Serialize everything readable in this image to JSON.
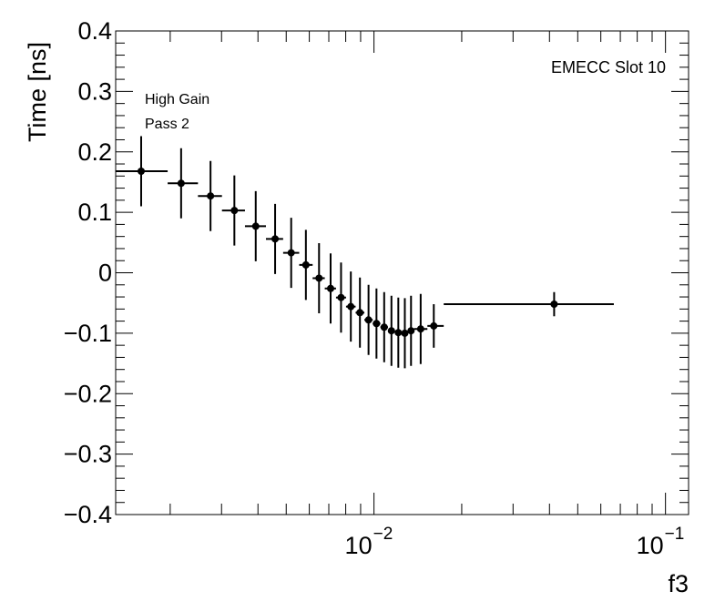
{
  "chart_data": {
    "type": "scatter",
    "title": "",
    "xlabel": "f3",
    "ylabel": "Time [ns]",
    "xscale": "log",
    "xlim": [
      0.0013,
      0.12
    ],
    "ylim": [
      -0.4,
      0.4
    ],
    "y_ticks": [
      {
        "value": 0.4,
        "label": "0.4"
      },
      {
        "value": 0.3,
        "label": "0.3"
      },
      {
        "value": 0.2,
        "label": "0.2"
      },
      {
        "value": 0.1,
        "label": "0.1"
      },
      {
        "value": 0.0,
        "label": "0"
      },
      {
        "value": -0.1,
        "label": "−0.1"
      },
      {
        "value": -0.2,
        "label": "−0.2"
      },
      {
        "value": -0.3,
        "label": "−0.3"
      },
      {
        "value": -0.4,
        "label": "−0.4"
      }
    ],
    "x_ticks": [
      {
        "value": 0.01,
        "base": "10",
        "exp": "−2"
      },
      {
        "value": 0.1,
        "base": "10",
        "exp": "−1"
      }
    ],
    "annotations": {
      "label1": "High Gain",
      "label2": "Pass 2",
      "label3": "EMECC Slot 10"
    },
    "series": [
      {
        "name": "Time",
        "points": [
          {
            "x": 0.00159,
            "xlo": 0.0013,
            "xhi": 0.00196,
            "y": 0.168,
            "err": 0.058
          },
          {
            "x": 0.00218,
            "xlo": 0.00196,
            "xhi": 0.00249,
            "y": 0.148,
            "err": 0.058
          },
          {
            "x": 0.00275,
            "xlo": 0.00249,
            "xhi": 0.00301,
            "y": 0.127,
            "err": 0.058
          },
          {
            "x": 0.00332,
            "xlo": 0.00301,
            "xhi": 0.00361,
            "y": 0.103,
            "err": 0.058
          },
          {
            "x": 0.00393,
            "xlo": 0.00361,
            "xhi": 0.00426,
            "y": 0.077,
            "err": 0.058
          },
          {
            "x": 0.00458,
            "xlo": 0.00426,
            "xhi": 0.00488,
            "y": 0.056,
            "err": 0.058
          },
          {
            "x": 0.0052,
            "xlo": 0.00488,
            "xhi": 0.00554,
            "y": 0.033,
            "err": 0.058
          },
          {
            "x": 0.00584,
            "xlo": 0.00554,
            "xhi": 0.00616,
            "y": 0.013,
            "err": 0.058
          },
          {
            "x": 0.00648,
            "xlo": 0.00616,
            "xhi": 0.00678,
            "y": -0.009,
            "err": 0.058
          },
          {
            "x": 0.0071,
            "xlo": 0.00678,
            "xhi": 0.00741,
            "y": -0.026,
            "err": 0.058
          },
          {
            "x": 0.00771,
            "xlo": 0.00741,
            "xhi": 0.00802,
            "y": -0.041,
            "err": 0.058
          },
          {
            "x": 0.00833,
            "xlo": 0.00802,
            "xhi": 0.00865,
            "y": -0.056,
            "err": 0.058
          },
          {
            "x": 0.00895,
            "xlo": 0.00865,
            "xhi": 0.00927,
            "y": -0.066,
            "err": 0.058
          },
          {
            "x": 0.00958,
            "xlo": 0.00927,
            "xhi": 0.0099,
            "y": -0.078,
            "err": 0.058
          },
          {
            "x": 0.0102,
            "xlo": 0.0099,
            "xhi": 0.01052,
            "y": -0.084,
            "err": 0.058
          },
          {
            "x": 0.01084,
            "xlo": 0.01052,
            "xhi": 0.01117,
            "y": -0.09,
            "err": 0.058
          },
          {
            "x": 0.01148,
            "xlo": 0.01117,
            "xhi": 0.0118,
            "y": -0.096,
            "err": 0.058
          },
          {
            "x": 0.01212,
            "xlo": 0.0118,
            "xhi": 0.01244,
            "y": -0.099,
            "err": 0.058
          },
          {
            "x": 0.01276,
            "xlo": 0.01244,
            "xhi": 0.01308,
            "y": -0.1,
            "err": 0.058
          },
          {
            "x": 0.0134,
            "xlo": 0.01308,
            "xhi": 0.01372,
            "y": -0.096,
            "err": 0.058
          },
          {
            "x": 0.01446,
            "xlo": 0.01372,
            "xhi": 0.01525,
            "y": -0.093,
            "err": 0.058
          },
          {
            "x": 0.01604,
            "xlo": 0.01525,
            "xhi": 0.01735,
            "y": -0.088,
            "err": 0.036
          },
          {
            "x": 0.0415,
            "xlo": 0.01735,
            "xhi": 0.0665,
            "y": -0.052,
            "err": 0.02
          }
        ]
      }
    ]
  }
}
